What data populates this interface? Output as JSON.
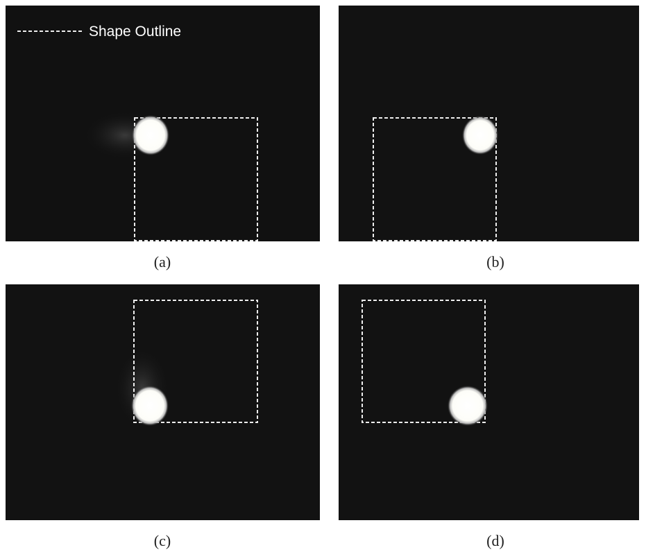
{
  "legend": {
    "label": "Shape Outline"
  },
  "panels": [
    {
      "caption": "(a)"
    },
    {
      "caption": "(b)"
    },
    {
      "caption": "(c)"
    },
    {
      "caption": "(d)"
    }
  ]
}
